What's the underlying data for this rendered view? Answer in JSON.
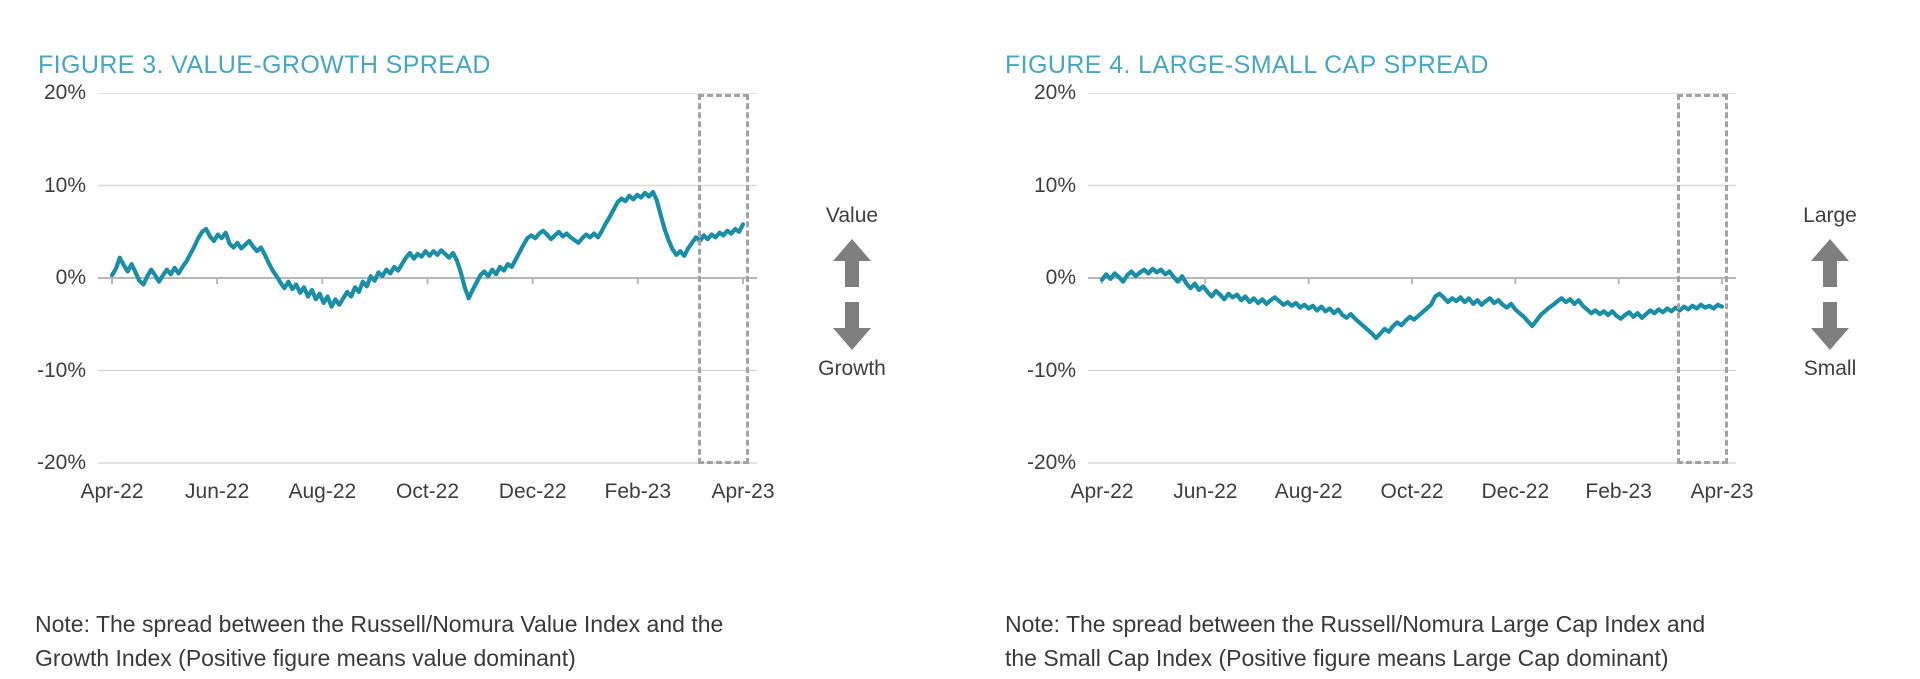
{
  "page": {
    "background": "#FFFFFF"
  },
  "chart_data": [
    {
      "type": "line",
      "title": "FIGURE 3. VALUE-GROWTH SPREAD",
      "direction_labels": {
        "up": "Value",
        "down": "Growth"
      },
      "note": {
        "line1": "Note: The spread between the Russell/Nomura Value Index and the",
        "line2": "Growth Index (Positive figure means value dominant)"
      },
      "x_tick_labels": [
        "Apr-22",
        "Jun-22",
        "Aug-22",
        "Oct-22",
        "Dec-22",
        "Feb-23",
        "Apr-23"
      ],
      "y_tick_labels": [
        "20%",
        "10%",
        "0%",
        "-10%",
        "-20%"
      ],
      "ylim": [
        -20,
        20
      ],
      "grid": "horizontal",
      "unit": "%",
      "highlight_box": {
        "start_frac": 0.928,
        "end_frac": 1.0
      },
      "series": [
        {
          "name": "Value-Growth spread",
          "values": [
            0.3,
            1.0,
            2.2,
            1.4,
            0.7,
            1.5,
            0.6,
            -0.3,
            -0.7,
            0.2,
            0.9,
            0.3,
            -0.4,
            0.3,
            0.9,
            0.4,
            1.1,
            0.5,
            1.2,
            1.8,
            2.6,
            3.4,
            4.3,
            5.0,
            5.3,
            4.5,
            4.0,
            4.7,
            4.3,
            4.9,
            3.7,
            3.3,
            3.8,
            3.2,
            3.6,
            4.0,
            3.4,
            2.9,
            3.3,
            2.5,
            1.6,
            0.8,
            0.2,
            -0.5,
            -1.1,
            -0.4,
            -1.2,
            -0.7,
            -1.6,
            -1.0,
            -2.0,
            -1.3,
            -2.3,
            -1.7,
            -2.7,
            -2.0,
            -3.1,
            -2.3,
            -2.9,
            -2.2,
            -1.5,
            -2.0,
            -1.0,
            -1.5,
            -0.4,
            -0.9,
            0.2,
            -0.3,
            0.6,
            0.2,
            0.9,
            0.5,
            1.2,
            0.8,
            1.5,
            2.2,
            2.7,
            2.1,
            2.6,
            2.3,
            2.9,
            2.4,
            2.9,
            2.5,
            3.0,
            2.6,
            2.2,
            2.7,
            1.9,
            0.6,
            -1.0,
            -2.2,
            -1.3,
            -0.5,
            0.3,
            0.7,
            0.2,
            0.9,
            0.4,
            1.2,
            0.8,
            1.5,
            1.2,
            2.0,
            2.8,
            3.6,
            4.3,
            4.6,
            4.3,
            4.8,
            5.1,
            4.7,
            4.2,
            4.6,
            5.0,
            4.5,
            4.8,
            4.4,
            4.1,
            3.8,
            4.3,
            4.7,
            4.4,
            4.8,
            4.4,
            5.1,
            5.9,
            6.6,
            7.4,
            8.2,
            8.6,
            8.3,
            8.9,
            8.5,
            9.0,
            8.7,
            9.2,
            8.8,
            9.3,
            8.4,
            6.8,
            5.3,
            4.1,
            3.1,
            2.5,
            2.9,
            2.4,
            3.2,
            3.8,
            4.4,
            4.0,
            4.6,
            4.2,
            4.7,
            4.4,
            4.9,
            4.6,
            5.1,
            4.8,
            5.3,
            5.0,
            5.8
          ]
        }
      ],
      "colors": {
        "line": "#1B8EA6",
        "title": "#48A6BE",
        "grid": "#D9D9D9",
        "axis": "#B7B7B7",
        "highlight_border": "#A3A3A3",
        "arrow": "#7F7F7F",
        "text": "#3E3E3E"
      }
    },
    {
      "type": "line",
      "title": "FIGURE 4. LARGE-SMALL CAP SPREAD",
      "direction_labels": {
        "up": "Large",
        "down": "Small"
      },
      "note": {
        "line1": "Note: The spread between the Russell/Nomura Large Cap Index and",
        "line2": "the Small Cap Index (Positive figure means Large Cap dominant)"
      },
      "x_tick_labels": [
        "Apr-22",
        "Jun-22",
        "Aug-22",
        "Oct-22",
        "Dec-22",
        "Feb-23",
        "Apr-23"
      ],
      "y_tick_labels": [
        "20%",
        "10%",
        "0%",
        "-10%",
        "-20%"
      ],
      "ylim": [
        -20,
        20
      ],
      "grid": "horizontal",
      "unit": "%",
      "highlight_box": {
        "start_frac": 0.928,
        "end_frac": 1.0
      },
      "series": [
        {
          "name": "Large-Small cap spread",
          "values": [
            -0.2,
            0.4,
            -0.1,
            0.5,
            0.1,
            -0.4,
            0.3,
            0.7,
            0.2,
            0.6,
            0.9,
            0.5,
            1.0,
            0.6,
            0.9,
            0.4,
            0.7,
            0.1,
            -0.4,
            0.2,
            -0.6,
            -1.1,
            -0.6,
            -1.3,
            -0.9,
            -1.5,
            -2.0,
            -1.4,
            -1.8,
            -2.3,
            -1.7,
            -2.1,
            -1.8,
            -2.4,
            -2.0,
            -2.6,
            -2.2,
            -2.7,
            -2.3,
            -2.8,
            -2.4,
            -2.1,
            -2.5,
            -2.9,
            -2.6,
            -3.0,
            -2.7,
            -3.2,
            -2.9,
            -3.3,
            -3.0,
            -3.5,
            -3.1,
            -3.6,
            -3.3,
            -3.8,
            -3.4,
            -4.0,
            -4.3,
            -3.9,
            -4.4,
            -4.8,
            -5.2,
            -5.6,
            -6.0,
            -6.5,
            -6.0,
            -5.5,
            -5.8,
            -5.2,
            -4.8,
            -5.1,
            -4.6,
            -4.2,
            -4.5,
            -4.1,
            -3.7,
            -3.3,
            -2.9,
            -2.0,
            -1.7,
            -2.1,
            -2.6,
            -2.2,
            -2.5,
            -2.1,
            -2.6,
            -2.2,
            -2.8,
            -2.4,
            -2.9,
            -2.5,
            -2.2,
            -2.7,
            -2.4,
            -2.9,
            -3.2,
            -2.8,
            -3.4,
            -3.8,
            -4.2,
            -4.7,
            -5.2,
            -4.6,
            -4.0,
            -3.6,
            -3.2,
            -2.9,
            -2.5,
            -2.2,
            -2.6,
            -2.3,
            -2.8,
            -2.4,
            -3.0,
            -3.4,
            -3.8,
            -3.5,
            -3.9,
            -3.6,
            -4.0,
            -3.6,
            -4.1,
            -4.4,
            -4.0,
            -3.7,
            -4.2,
            -3.8,
            -4.3,
            -3.9,
            -3.5,
            -3.8,
            -3.4,
            -3.7,
            -3.3,
            -3.6,
            -3.2,
            -3.5,
            -3.1,
            -3.4,
            -3.0,
            -3.3,
            -2.9,
            -3.2,
            -3.0,
            -3.3,
            -2.9,
            -3.1
          ]
        }
      ],
      "colors": {
        "line": "#1B8EA6",
        "title": "#48A6BE",
        "grid": "#D9D9D9",
        "axis": "#B7B7B7",
        "highlight_border": "#A3A3A3",
        "arrow": "#7F7F7F",
        "text": "#3E3E3E"
      }
    }
  ]
}
